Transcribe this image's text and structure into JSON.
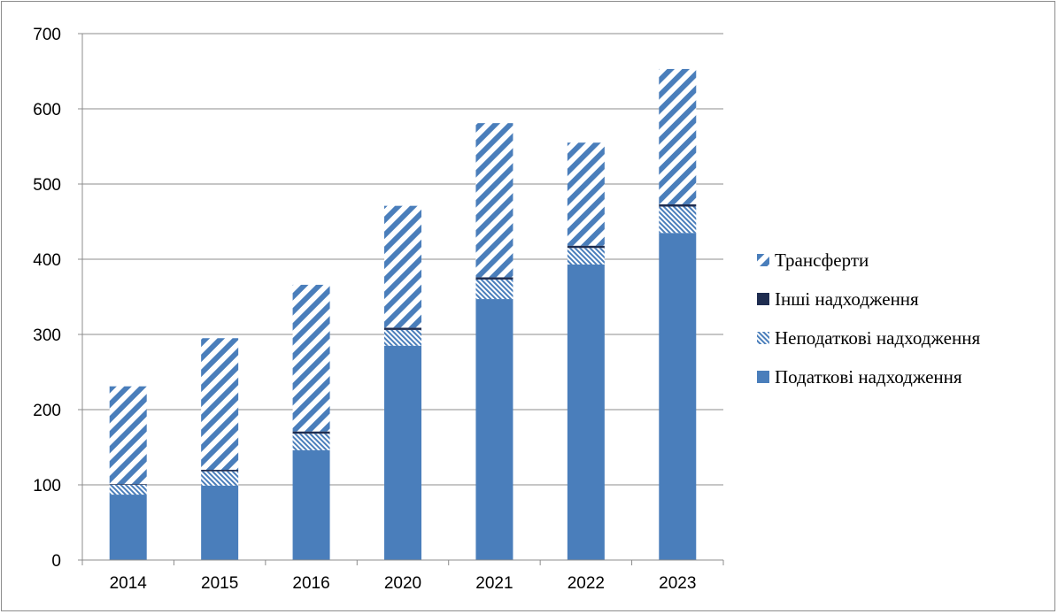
{
  "chart_data": {
    "type": "bar",
    "stacked": true,
    "categories": [
      "2014",
      "2015",
      "2016",
      "2020",
      "2021",
      "2022",
      "2023"
    ],
    "series": [
      {
        "name": "Податкові надходження",
        "values": [
          87,
          99,
          146,
          285,
          347,
          393,
          435
        ],
        "color": "#4a7ebb",
        "pattern": "solid"
      },
      {
        "name": "Неподаткові надходження",
        "values": [
          13,
          19,
          22,
          21,
          26,
          22,
          35
        ],
        "color": "#4a7ebb",
        "pattern": "dense-diagonal"
      },
      {
        "name": "Інші надходження",
        "values": [
          1,
          2,
          3,
          3,
          3,
          3,
          3
        ],
        "color": "#1f2d50",
        "pattern": "solid"
      },
      {
        "name": "Трансферти",
        "values": [
          130,
          175,
          195,
          162,
          205,
          137,
          180
        ],
        "color": "#4a7ebb",
        "pattern": "wide-diagonal"
      }
    ],
    "ylim": [
      0,
      700
    ],
    "yticks": [
      0,
      100,
      200,
      300,
      400,
      500,
      600,
      700
    ],
    "grid": true,
    "legend_position": "right"
  }
}
